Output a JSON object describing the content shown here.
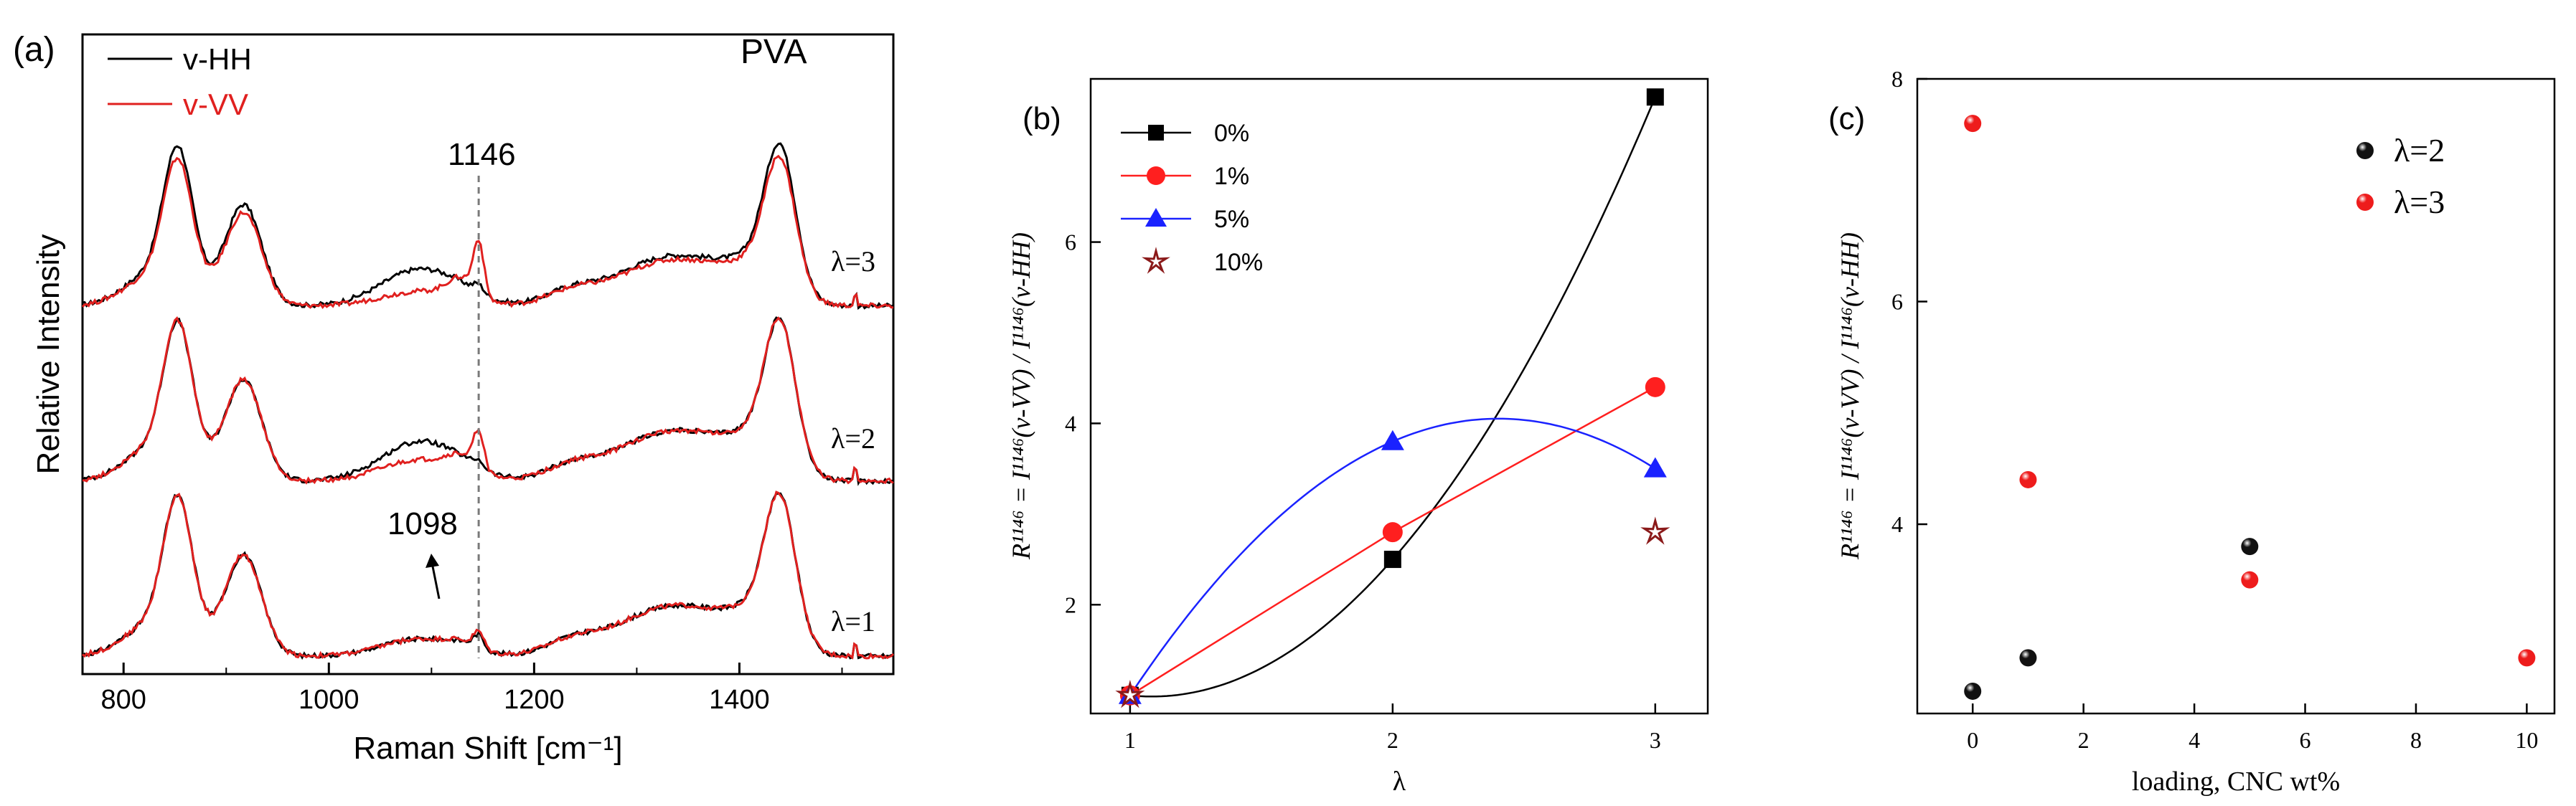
{
  "chart_data": [
    {
      "type": "line",
      "panel_label": "(a)",
      "title": "PVA",
      "xlabel": "Raman Shift [cm⁻¹]",
      "ylabel": "Relative Intensity",
      "xlim": [
        760,
        1550
      ],
      "xticks": [
        800,
        1000,
        1200,
        1400
      ],
      "legend": [
        "v-HH",
        "v-VV"
      ],
      "legend_colors": [
        "#000000",
        "#e0201f"
      ],
      "stack_labels": [
        "λ=3",
        "λ=2",
        "λ=1"
      ],
      "annotations": [
        "1146",
        "1098"
      ],
      "marker_line_x": 1146,
      "stacks": [
        {
          "label_index": 0,
          "offset": 2.0,
          "hh_scale": 1.0,
          "vv_scale": 0.92,
          "band1146_hh": 0.06,
          "band1146_vv": 0.42,
          "band1098_hh": 0.28,
          "band1098_vv": 0.12
        },
        {
          "label_index": 1,
          "offset": 1.0,
          "hh_scale": 1.0,
          "vv_scale": 1.0,
          "band1146_hh": 0.05,
          "band1146_vv": 0.28,
          "band1098_hh": 0.3,
          "band1098_vv": 0.16
        },
        {
          "label_index": 2,
          "offset": 0.0,
          "hh_scale": 1.0,
          "vv_scale": 1.0,
          "band1146_hh": 0.1,
          "band1146_vv": 0.12,
          "band1098_hh": 0.13,
          "band1098_vv": 0.13
        }
      ]
    },
    {
      "type": "scatter",
      "panel_label": "(b)",
      "xlabel": "λ",
      "ylabel": "R¹¹⁴⁶ = I¹¹⁴⁶(v-VV) / I¹¹⁴⁶(v-HH)",
      "xlim": [
        0.85,
        3.2
      ],
      "ylim": [
        0.8,
        7.8
      ],
      "xticks": [
        1,
        2,
        3
      ],
      "yticks": [
        2,
        4,
        6
      ],
      "legend_position": "top-left",
      "series": [
        {
          "name": "0%",
          "color": "#000000",
          "marker": "square",
          "x": [
            1,
            2,
            3
          ],
          "y": [
            1.0,
            2.5,
            7.6
          ]
        },
        {
          "name": "1%",
          "color": "#ff1f1f",
          "marker": "circle",
          "x": [
            1,
            2,
            3
          ],
          "y": [
            1.0,
            2.8,
            4.4
          ]
        },
        {
          "name": "5%",
          "color": "#1a22ff",
          "marker": "triangle",
          "x": [
            1,
            2,
            3
          ],
          "y": [
            1.0,
            3.8,
            3.5
          ]
        },
        {
          "name": "10%",
          "color": "#8b1a1a",
          "marker": "star",
          "x": [
            1,
            3
          ],
          "y": [
            1.0,
            2.8
          ]
        }
      ]
    },
    {
      "type": "scatter",
      "panel_label": "(c)",
      "xlabel": "loading, CNC wt%",
      "ylabel": "R¹¹⁴⁶ = I¹¹⁴⁶(v-VV) / I¹¹⁴⁶(v-HH)",
      "xlim": [
        -1,
        10.5
      ],
      "ylim": [
        2.3,
        8.0
      ],
      "xticks": [
        0,
        2,
        4,
        6,
        8,
        10
      ],
      "yticks": [
        4,
        6,
        8
      ],
      "legend_position": "top-right",
      "series": [
        {
          "name": "λ=2",
          "color": "#111111",
          "x": [
            0,
            1,
            5
          ],
          "y": [
            2.5,
            2.8,
            3.8
          ]
        },
        {
          "name": "λ=3",
          "color": "#ee1c1c",
          "x": [
            0,
            1,
            5,
            10
          ],
          "y": [
            7.6,
            4.4,
            3.5,
            2.8
          ]
        }
      ]
    }
  ]
}
